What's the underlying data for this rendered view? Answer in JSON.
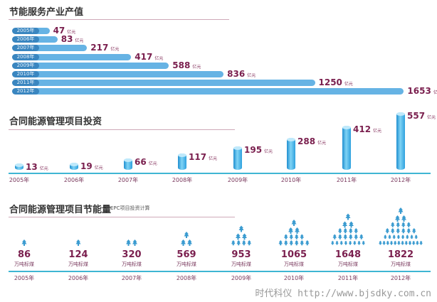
{
  "colors": {
    "bar": "#66b3e4",
    "pill": "#3a86c0",
    "value": "#7a1f4e",
    "baseline": "#3fb6d3",
    "tree": "#3a9bd0"
  },
  "watermark": "时代科仪 http://www.bjsdky.com.cn",
  "chart_data": [
    {
      "type": "bar",
      "orientation": "horizontal",
      "title": "节能服务产业产值",
      "unit": "亿元",
      "categories": [
        "2005年",
        "2006年",
        "2007年",
        "2008年",
        "2009年",
        "2010年",
        "2011年",
        "2012年"
      ],
      "values": [
        47,
        83,
        217,
        417,
        588,
        836,
        1250,
        1653
      ]
    },
    {
      "type": "bar",
      "title": "合同能源管理项目投资",
      "unit": "亿元",
      "categories": [
        "2005年",
        "2006年",
        "2007年",
        "2008年",
        "2009年",
        "2010年",
        "2011年",
        "2012年"
      ],
      "values": [
        13,
        19,
        66,
        117,
        195,
        288,
        412,
        557
      ]
    },
    {
      "type": "bar",
      "style": "pictogram-trees",
      "title": "合同能源管理项目节能量",
      "subtitle": "按EPC项目投资计算",
      "unit": "万吨标煤",
      "categories": [
        "2005年",
        "2006年",
        "2007年",
        "2008年",
        "2009年",
        "2010年",
        "2011年",
        "2012年"
      ],
      "values": [
        86,
        124,
        320,
        569,
        953,
        1065,
        1648,
        1822
      ]
    }
  ]
}
